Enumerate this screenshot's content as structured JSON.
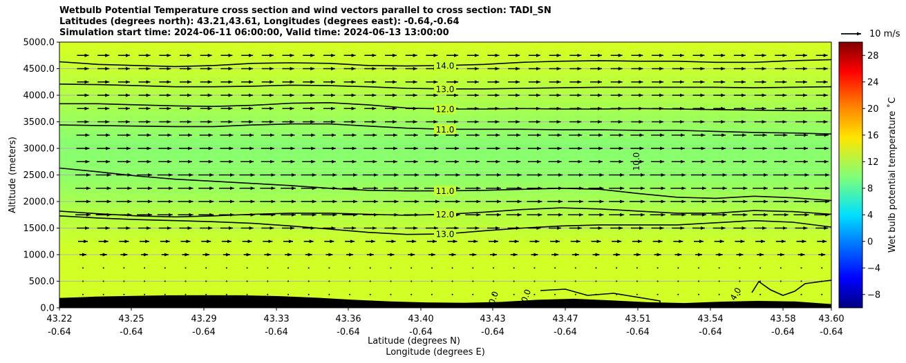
{
  "chart_data": {
    "type": "heatmap",
    "title_lines": [
      "Wetbulb Potential Temperature cross section and wind vectors parallel to cross section: TADI_SN",
      "Latitudes (degrees north): 43.21,43.61, Longitudes (degrees east): -0.64,-0.64",
      "Simulation start time: 2024-06-11 06:00:00, Valid time: 2024-06-13 13:00:00"
    ],
    "ylabel": "Altitude (meters)",
    "xlabel_lat": "Latitude (degrees N)",
    "xlabel_lon": "Longitude (degrees E)",
    "y_ticks": [
      "0.0",
      "500.0",
      "1000.0",
      "1500.0",
      "2000.0",
      "2500.0",
      "3000.0",
      "3500.0",
      "4000.0",
      "4500.0",
      "5000.0"
    ],
    "ylim": [
      0,
      5000
    ],
    "x_ticks": [
      {
        "lat": "43.22",
        "lon": "-0.64"
      },
      {
        "lat": "43.25",
        "lon": "-0.64"
      },
      {
        "lat": "43.29",
        "lon": "-0.64"
      },
      {
        "lat": "43.33",
        "lon": "-0.64"
      },
      {
        "lat": "43.36",
        "lon": "-0.64"
      },
      {
        "lat": "43.40",
        "lon": "-0.64"
      },
      {
        "lat": "43.43",
        "lon": "-0.64"
      },
      {
        "lat": "43.47",
        "lon": "-0.64"
      },
      {
        "lat": "43.51",
        "lon": "-0.64"
      },
      {
        "lat": "43.54",
        "lon": "-0.64"
      },
      {
        "lat": "43.58",
        "lon": "-0.64"
      },
      {
        "lat": "43.60",
        "lon": "-0.64"
      }
    ],
    "grid": "horizontal",
    "colorbar": {
      "label": "Wet bulb potential temperature $^\\circ$C",
      "label_display": "Wet bulb potential temperature ˚C",
      "ticks": [
        "−8",
        "−4",
        "0",
        "4",
        "8",
        "12",
        "16",
        "20",
        "24",
        "28"
      ],
      "range": [
        -10,
        30
      ],
      "colormap": "jet"
    },
    "quiver_key": {
      "label": "10 m/s"
    },
    "contour_labels": [
      "14.0",
      "13.0",
      "12.0",
      "11.0",
      "11.0",
      "12.0",
      "13.0",
      "10.0",
      "0.0",
      "0.0",
      "4.0"
    ],
    "contours": [
      {
        "level": 14.0,
        "alt": [
          4630,
          4580,
          4560,
          4540,
          4560,
          4600,
          4610,
          4600,
          4560,
          4550,
          4560,
          4580,
          4620,
          4640,
          4650,
          4640,
          4640,
          4620,
          4620,
          4650,
          4670
        ]
      },
      {
        "level": 13.0,
        "alt": [
          4210,
          4200,
          4180,
          4160,
          4160,
          4170,
          4190,
          4180,
          4160,
          4130,
          4120,
          4120,
          4130,
          4140,
          4150,
          4150,
          4150,
          4150,
          4140,
          4150,
          4160
        ]
      },
      {
        "level": 12.0,
        "alt": [
          3840,
          3840,
          3820,
          3800,
          3790,
          3810,
          3850,
          3860,
          3820,
          3760,
          3740,
          3740,
          3750,
          3740,
          3740,
          3750,
          3740,
          3730,
          3720,
          3710,
          3710
        ]
      },
      {
        "level": 11.0,
        "alt": [
          3440,
          3430,
          3420,
          3410,
          3410,
          3440,
          3460,
          3460,
          3420,
          3380,
          3360,
          3360,
          3360,
          3350,
          3350,
          3340,
          3340,
          3320,
          3300,
          3290,
          3270
        ]
      },
      {
        "level": 11.0,
        "alt": [
          2630,
          2560,
          2480,
          2420,
          2380,
          2340,
          2300,
          2250,
          2210,
          2200,
          2200,
          2210,
          2230,
          2250,
          2230,
          2150,
          2080,
          2060,
          2100,
          2070,
          2020
        ]
      },
      {
        "level": 12.0,
        "alt": [
          1820,
          1770,
          1730,
          1710,
          1730,
          1760,
          1780,
          1780,
          1760,
          1740,
          1760,
          1800,
          1850,
          1880,
          1860,
          1820,
          1780,
          1780,
          1830,
          1810,
          1760
        ]
      },
      {
        "level": 13.0,
        "alt": [
          1730,
          1690,
          1660,
          1640,
          1620,
          1590,
          1540,
          1480,
          1420,
          1380,
          1390,
          1450,
          1500,
          1540,
          1560,
          1560,
          1560,
          1600,
          1640,
          1610,
          1520
        ]
      }
    ],
    "terrain_alt": [
      185,
      210,
      225,
      235,
      238,
      235,
      220,
      190,
      150,
      120,
      100,
      95,
      110,
      150,
      170,
      140,
      105,
      90,
      115,
      130,
      120,
      70
    ]
  }
}
